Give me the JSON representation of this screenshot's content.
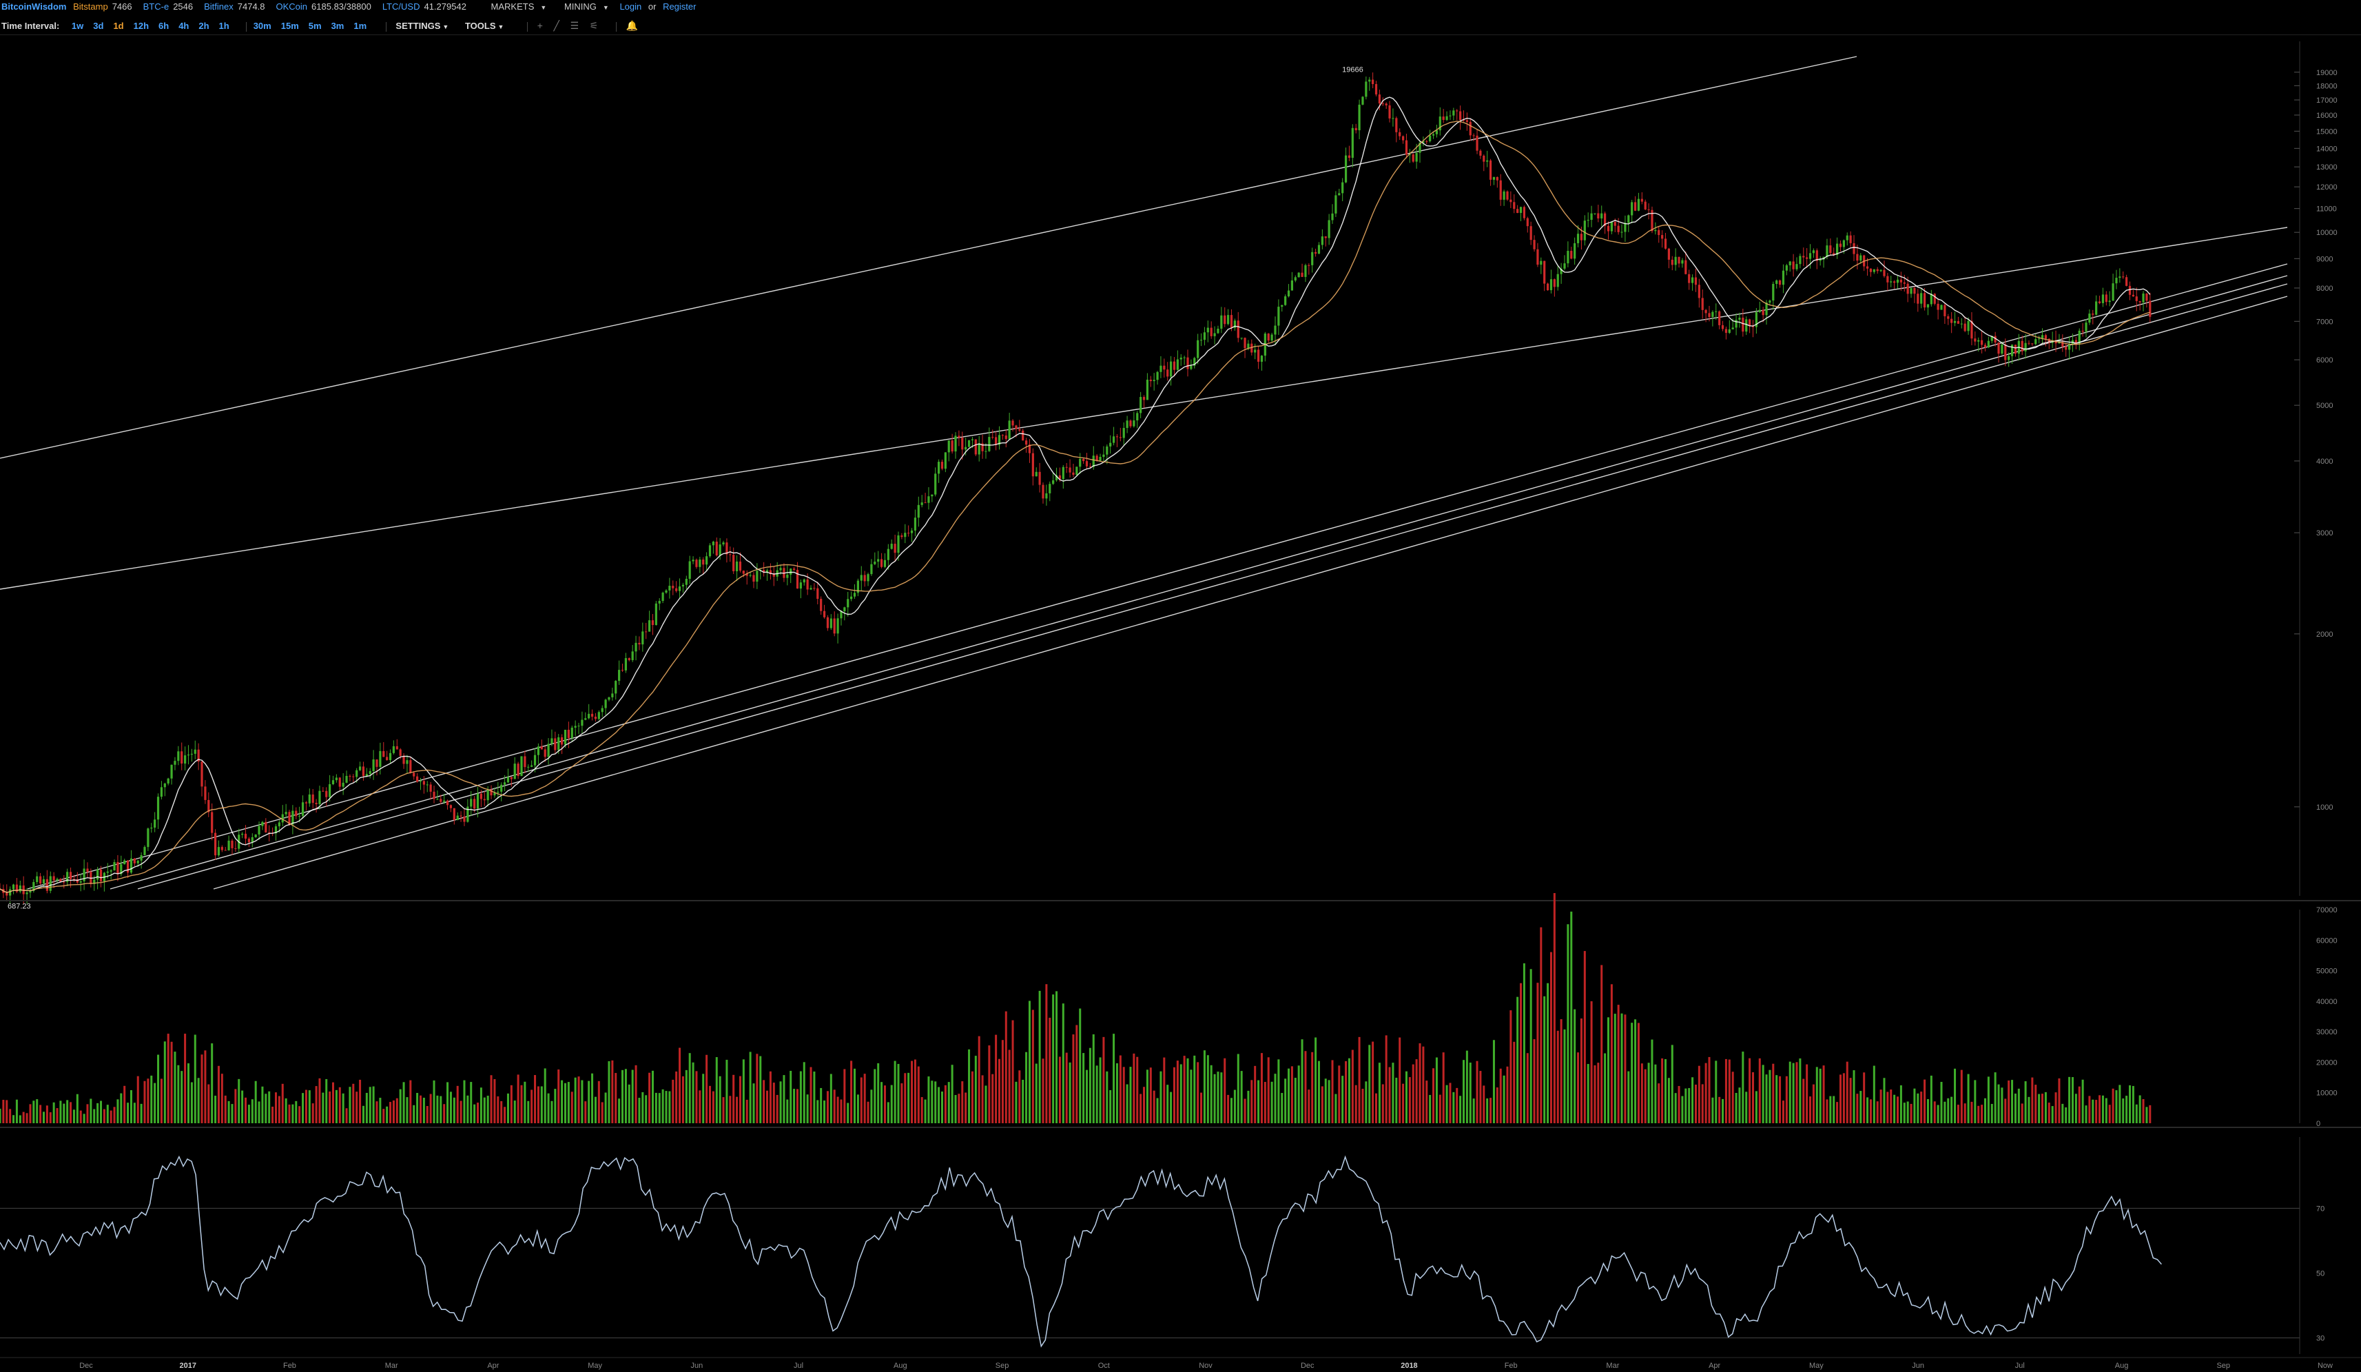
{
  "topbar": {
    "brand": "BitcoinWisdom",
    "exchanges": [
      {
        "name": "Bitstamp",
        "price": "7466",
        "color": "#f0a030"
      },
      {
        "name": "BTC-e",
        "price": "2546",
        "color": "#4aa3ff"
      },
      {
        "name": "Bitfinex",
        "price": "7474.8",
        "color": "#4aa3ff"
      },
      {
        "name": "OKCoin",
        "price": "6185.83/38800",
        "color": "#4aa3ff"
      },
      {
        "name": "LTC/USD",
        "price": "41.279542",
        "color": "#4aa3ff"
      }
    ],
    "menus": [
      "MARKETS",
      "MINING"
    ],
    "login": "Login",
    "or": "or",
    "register": "Register"
  },
  "toolbar": {
    "label": "Time Interval:",
    "intervals": [
      "1w",
      "3d",
      "1d",
      "12h",
      "6h",
      "4h",
      "2h",
      "1h",
      "30m",
      "15m",
      "5m",
      "3m",
      "1m"
    ],
    "active_interval": "1d",
    "settings": "SETTINGS",
    "tools": "TOOLS",
    "tool_icons": [
      "crosshair-icon",
      "line-icon",
      "channel-icon",
      "fib-icon"
    ],
    "alert_icon": "bell-icon"
  },
  "chart_data": [
    {
      "type": "candlestick",
      "scale": "log",
      "y_ticks": [
        19000,
        18000,
        17000,
        16000,
        15000,
        14000,
        13000,
        12000,
        11000,
        10000,
        9000,
        8000,
        7000,
        6000,
        5000,
        4000,
        3000,
        2000,
        1000
      ],
      "ylim": [
        700,
        21500
      ],
      "x_ticks": [
        "Dec",
        "2017",
        "Feb",
        "Mar",
        "Apr",
        "May",
        "Jun",
        "Jul",
        "Aug",
        "Sep",
        "Oct",
        "Nov",
        "Dec",
        "2018",
        "Feb",
        "Mar",
        "Apr",
        "May",
        "Jun",
        "Jul",
        "Aug",
        "Sep",
        "Now"
      ],
      "annotations": [
        {
          "label": "19666",
          "x": 0.595,
          "value": 19666
        },
        {
          "label": "687.23",
          "x": 0.012,
          "value": 687.23
        }
      ],
      "price_path": [
        [
          0.0,
          720
        ],
        [
          0.02,
          735
        ],
        [
          0.04,
          760
        ],
        [
          0.06,
          800
        ],
        [
          0.075,
          1200
        ],
        [
          0.085,
          1250
        ],
        [
          0.095,
          820
        ],
        [
          0.11,
          900
        ],
        [
          0.125,
          950
        ],
        [
          0.14,
          1050
        ],
        [
          0.16,
          1180
        ],
        [
          0.175,
          1250
        ],
        [
          0.185,
          1100
        ],
        [
          0.2,
          950
        ],
        [
          0.215,
          1080
        ],
        [
          0.23,
          1200
        ],
        [
          0.245,
          1300
        ],
        [
          0.26,
          1450
        ],
        [
          0.275,
          1800
        ],
        [
          0.29,
          2300
        ],
        [
          0.305,
          2700
        ],
        [
          0.315,
          2850
        ],
        [
          0.325,
          2500
        ],
        [
          0.34,
          2600
        ],
        [
          0.355,
          2400
        ],
        [
          0.365,
          2000
        ],
        [
          0.375,
          2500
        ],
        [
          0.39,
          2800
        ],
        [
          0.405,
          3400
        ],
        [
          0.415,
          4300
        ],
        [
          0.43,
          4200
        ],
        [
          0.445,
          4700
        ],
        [
          0.455,
          3500
        ],
        [
          0.465,
          3800
        ],
        [
          0.475,
          4000
        ],
        [
          0.49,
          4400
        ],
        [
          0.505,
          5700
        ],
        [
          0.52,
          6000
        ],
        [
          0.535,
          7200
        ],
        [
          0.55,
          6100
        ],
        [
          0.565,
          8000
        ],
        [
          0.58,
          10000
        ],
        [
          0.59,
          14000
        ],
        [
          0.598,
          19000
        ],
        [
          0.607,
          16000
        ],
        [
          0.617,
          13500
        ],
        [
          0.627,
          15000
        ],
        [
          0.637,
          16500
        ],
        [
          0.647,
          14000
        ],
        [
          0.657,
          11500
        ],
        [
          0.667,
          10500
        ],
        [
          0.677,
          8000
        ],
        [
          0.687,
          9200
        ],
        [
          0.697,
          11000
        ],
        [
          0.707,
          10000
        ],
        [
          0.717,
          11500
        ],
        [
          0.727,
          9500
        ],
        [
          0.737,
          8500
        ],
        [
          0.747,
          7200
        ],
        [
          0.757,
          6800
        ],
        [
          0.767,
          7000
        ],
        [
          0.777,
          8200
        ],
        [
          0.787,
          9000
        ],
        [
          0.797,
          9300
        ],
        [
          0.807,
          9600
        ],
        [
          0.817,
          8800
        ],
        [
          0.827,
          8200
        ],
        [
          0.837,
          7800
        ],
        [
          0.847,
          7500
        ],
        [
          0.857,
          7000
        ],
        [
          0.867,
          6500
        ],
        [
          0.877,
          6200
        ],
        [
          0.887,
          6300
        ],
        [
          0.897,
          6600
        ],
        [
          0.907,
          6300
        ],
        [
          0.917,
          7500
        ],
        [
          0.927,
          8200
        ],
        [
          0.935,
          7800
        ],
        [
          0.94,
          7300
        ]
      ]
    },
    {
      "type": "bar",
      "title": "volume",
      "y_ticks": [
        70000,
        60000,
        50000,
        40000,
        30000,
        20000,
        10000,
        0
      ],
      "ylim": [
        0,
        70000
      ],
      "volume_profile": [
        [
          0.0,
          6000
        ],
        [
          0.05,
          8000
        ],
        [
          0.085,
          30000
        ],
        [
          0.1,
          12000
        ],
        [
          0.2,
          11000
        ],
        [
          0.28,
          18000
        ],
        [
          0.3,
          20000
        ],
        [
          0.36,
          16000
        ],
        [
          0.42,
          18000
        ],
        [
          0.46,
          40000
        ],
        [
          0.5,
          17000
        ],
        [
          0.55,
          20000
        ],
        [
          0.6,
          24000
        ],
        [
          0.65,
          18000
        ],
        [
          0.68,
          60000
        ],
        [
          0.72,
          22000
        ],
        [
          0.8,
          16000
        ],
        [
          0.9,
          12000
        ],
        [
          0.94,
          10000
        ]
      ]
    },
    {
      "type": "line",
      "title": "rsi",
      "y_ticks": [
        70,
        50,
        30
      ],
      "ylim": [
        25,
        92
      ],
      "values": [
        [
          0.0,
          60
        ],
        [
          0.02,
          58
        ],
        [
          0.04,
          62
        ],
        [
          0.06,
          65
        ],
        [
          0.07,
          80
        ],
        [
          0.085,
          87
        ],
        [
          0.09,
          48
        ],
        [
          0.1,
          42
        ],
        [
          0.12,
          55
        ],
        [
          0.14,
          72
        ],
        [
          0.16,
          80
        ],
        [
          0.175,
          75
        ],
        [
          0.19,
          40
        ],
        [
          0.2,
          35
        ],
        [
          0.215,
          55
        ],
        [
          0.23,
          62
        ],
        [
          0.245,
          58
        ],
        [
          0.26,
          82
        ],
        [
          0.275,
          85
        ],
        [
          0.29,
          65
        ],
        [
          0.3,
          62
        ],
        [
          0.315,
          75
        ],
        [
          0.33,
          55
        ],
        [
          0.35,
          57
        ],
        [
          0.365,
          32
        ],
        [
          0.38,
          62
        ],
        [
          0.4,
          68
        ],
        [
          0.415,
          80
        ],
        [
          0.43,
          78
        ],
        [
          0.445,
          62
        ],
        [
          0.455,
          28
        ],
        [
          0.47,
          60
        ],
        [
          0.49,
          72
        ],
        [
          0.505,
          80
        ],
        [
          0.52,
          75
        ],
        [
          0.535,
          78
        ],
        [
          0.55,
          42
        ],
        [
          0.56,
          65
        ],
        [
          0.575,
          74
        ],
        [
          0.588,
          85
        ],
        [
          0.595,
          80
        ],
        [
          0.605,
          67
        ],
        [
          0.615,
          45
        ],
        [
          0.63,
          52
        ],
        [
          0.645,
          48
        ],
        [
          0.66,
          34
        ],
        [
          0.675,
          31
        ],
        [
          0.69,
          45
        ],
        [
          0.71,
          55
        ],
        [
          0.725,
          42
        ],
        [
          0.74,
          52
        ],
        [
          0.755,
          33
        ],
        [
          0.77,
          38
        ],
        [
          0.785,
          62
        ],
        [
          0.8,
          67
        ],
        [
          0.815,
          50
        ],
        [
          0.83,
          45
        ],
        [
          0.845,
          40
        ],
        [
          0.86,
          35
        ],
        [
          0.875,
          32
        ],
        [
          0.89,
          40
        ],
        [
          0.905,
          50
        ],
        [
          0.915,
          66
        ],
        [
          0.925,
          72
        ],
        [
          0.935,
          65
        ],
        [
          0.945,
          52
        ]
      ]
    }
  ]
}
